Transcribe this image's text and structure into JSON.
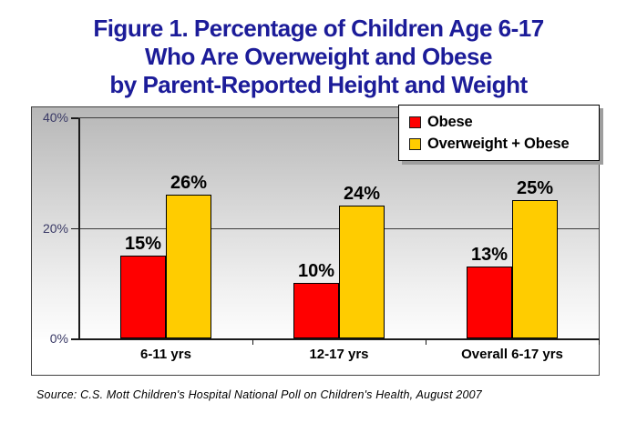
{
  "figure": {
    "title_lines": [
      "Figure 1. Percentage of Children Age 6-17",
      "Who Are Overweight and Obese",
      "by Parent-Reported Height and Weight"
    ],
    "source": "Source: C.S. Mott Children's Hospital National Poll on Children's Health, August 2007"
  },
  "colors": {
    "title_text": "#1C1C99",
    "axis_label_text": "#3A3A66",
    "obese_bar": "#FF0000",
    "overweight_obese_bar": "#FFCC00"
  },
  "chart_data": {
    "type": "bar",
    "title": "Figure 1. Percentage of Children Age 6-17 Who Are Overweight and Obese by Parent-Reported Height and Weight",
    "categories": [
      "6-11 yrs",
      "12-17 yrs",
      "Overall 6-17 yrs"
    ],
    "series": [
      {
        "name": "Obese",
        "color": "#FF0000",
        "values": [
          15,
          10,
          13
        ]
      },
      {
        "name": "Overweight + Obese",
        "color": "#FFCC00",
        "values": [
          26,
          24,
          25
        ]
      }
    ],
    "value_suffix": "%",
    "xlabel": "",
    "ylabel": "",
    "ylim": [
      0,
      42
    ],
    "yticks": [
      0,
      20,
      40
    ],
    "ytick_labels": [
      "0%",
      "20%",
      "40%"
    ],
    "grid": true,
    "legend_position": "top-right"
  }
}
